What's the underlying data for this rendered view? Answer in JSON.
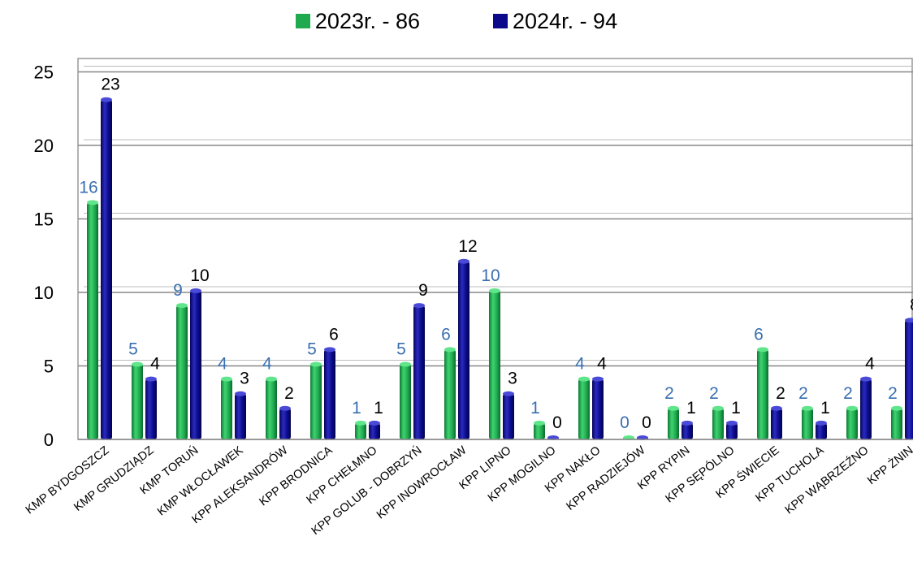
{
  "chart_data": {
    "type": "bar",
    "categories": [
      "KMP BYDGOSZCZ",
      "KMP GRUDZIĄDZ",
      "KMP TORUŃ",
      "KMP WŁOCŁAWEK",
      "KPP ALEKSANDRÓW",
      "KPP BRODNICA",
      "KPP CHEŁMNO",
      "KPP GOLUB - DOBRZYŃ",
      "KPP INOWROCŁAW",
      "KPP LIPNO",
      "KPP MOGILNO",
      "KPP NAKŁO",
      "KPP RADZIEJÓW",
      "KPP RYPIN",
      "KPP SĘPÓLNO",
      "KPP ŚWIECIE",
      "KPP TUCHOLA",
      "KPP WĄBRZEŹNO",
      "KPP ŻNIN"
    ],
    "series": [
      {
        "name": "2023r. - 86",
        "values": [
          16,
          5,
          9,
          4,
          4,
          5,
          1,
          5,
          6,
          10,
          1,
          4,
          0,
          2,
          2,
          6,
          2,
          2,
          2
        ],
        "color": "#1faa50",
        "label_color": "#3a6fb0"
      },
      {
        "name": "2024r. - 94",
        "values": [
          23,
          4,
          10,
          3,
          2,
          6,
          1,
          9,
          12,
          3,
          0,
          4,
          0,
          1,
          1,
          2,
          1,
          4,
          8
        ],
        "color": "#0a0a8a",
        "label_color": "#000000"
      }
    ],
    "yticks": [
      0,
      5,
      10,
      15,
      20,
      25
    ],
    "ylim": [
      0,
      25
    ],
    "grid": true,
    "legend": "top-center"
  }
}
